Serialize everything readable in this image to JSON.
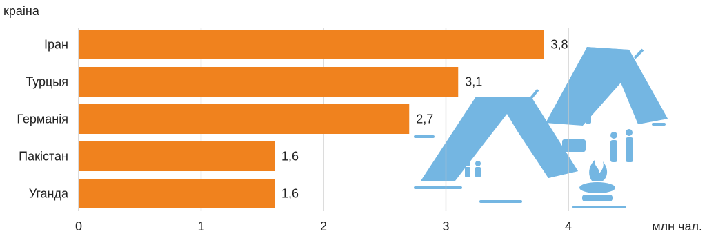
{
  "chart_data": {
    "type": "bar",
    "orientation": "horizontal",
    "ylabel": "краіна",
    "xlabel": "млн чал.",
    "categories": [
      "Іран",
      "Турцыя",
      "Германія",
      "Пакістан",
      "Уганда"
    ],
    "values": [
      3.8,
      3.1,
      2.7,
      1.6,
      1.6
    ],
    "value_labels": [
      "3,8",
      "3,1",
      "2,7",
      "1,6",
      "1,6"
    ],
    "xlim": [
      0,
      4
    ],
    "xticks": [
      0,
      1,
      2,
      3,
      4
    ],
    "xtick_labels": [
      "0",
      "1",
      "2",
      "3",
      "4"
    ],
    "grid": "vertical",
    "colors": {
      "bar": "#f0821e",
      "grid": "#c8c8c8",
      "illustration": "#74b6e2"
    },
    "illustration": [
      "tent-icon",
      "tent-icon",
      "person-icon",
      "campfire-icon",
      "suitcase-icon"
    ]
  }
}
